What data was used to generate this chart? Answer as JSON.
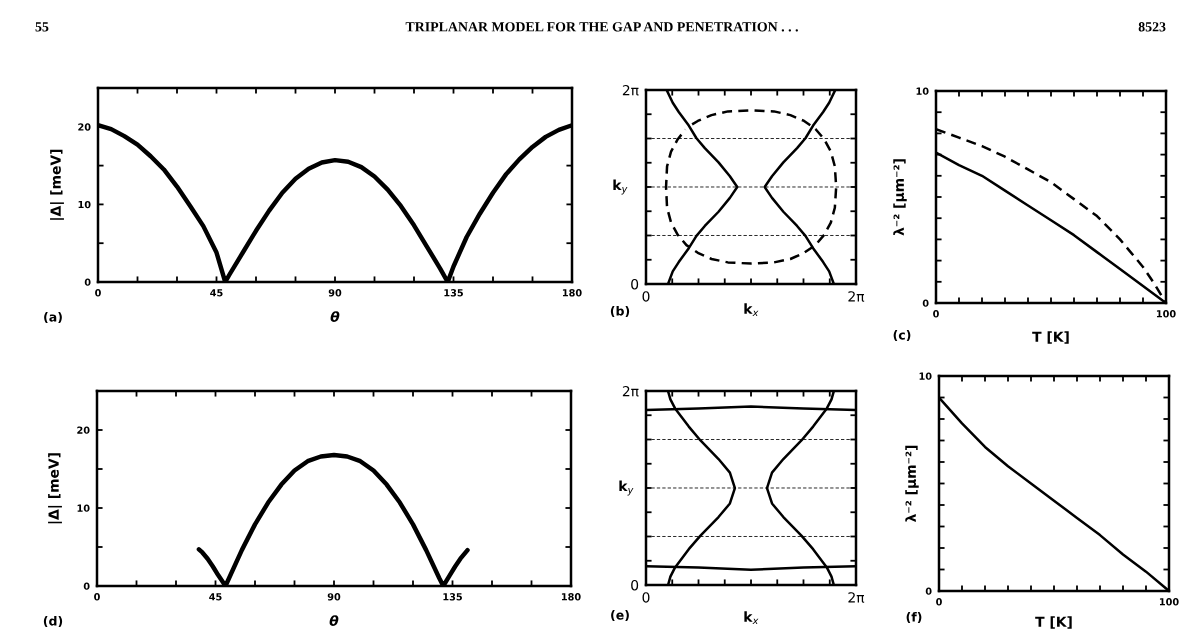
{
  "chart_data": [
    {
      "type": "line",
      "xlabel": "θ",
      "ylabel": "|Δ| [meV]",
      "xlim": [
        0,
        180
      ],
      "ylim": [
        0,
        25
      ],
      "xticks": [
        0,
        {
          "value": 15,
          "label": null
        },
        {
          "value": 30,
          "label": null
        },
        45,
        {
          "value": 60,
          "label": null
        },
        {
          "value": 75,
          "label": null
        },
        90,
        {
          "value": 105,
          "label": null
        },
        {
          "value": 120,
          "label": null
        },
        135,
        {
          "value": 150,
          "label": null
        },
        {
          "value": 165,
          "label": null
        },
        180
      ],
      "yticks": [
        0,
        {
          "value": 5,
          "label": null
        },
        10,
        {
          "value": 15,
          "label": null
        },
        20
      ],
      "series": [
        {
          "color": "#000000",
          "line_style": "solid",
          "x": [
            0,
            5,
            10,
            15,
            20,
            25,
            30,
            35,
            40,
            45,
            48.3,
            50,
            55,
            60,
            65,
            70,
            75,
            80,
            85,
            90,
            95,
            100,
            105,
            110,
            115,
            120,
            125,
            130,
            132.8,
            135,
            140,
            145,
            150,
            155,
            160,
            165,
            170,
            175,
            180
          ],
          "values": [
            20.2,
            19.7,
            18.8,
            17.7,
            16.2,
            14.5,
            12.3,
            9.8,
            7.2,
            3.8,
            0,
            1.0,
            3.8,
            6.6,
            9.2,
            11.5,
            13.3,
            14.6,
            15.4,
            15.7,
            15.5,
            14.8,
            13.6,
            11.9,
            9.8,
            7.3,
            4.5,
            1.7,
            0,
            2.0,
            5.8,
            8.8,
            11.5,
            13.9,
            15.8,
            17.4,
            18.7,
            19.6,
            20.2
          ]
        }
      ],
      "annotations": [
        "55",
        "TRIPLANAR MODEL FOR THE GAP AND PENETRATION . . .",
        "8523",
        "(a)"
      ]
    },
    {
      "type": "line",
      "xlabel": "k$_{x}$",
      "ylabel": "k$_{y}$",
      "xlim": [
        0,
        6.283
      ],
      "ylim": [
        0,
        6.283
      ],
      "xticks": [
        0,
        {
          "value": 0.785,
          "label": null
        },
        {
          "value": 1.571,
          "label": null
        },
        {
          "value": 2.356,
          "label": null
        },
        {
          "value": 3.142,
          "label": null
        },
        {
          "value": 3.927,
          "label": null
        },
        {
          "value": 4.712,
          "label": null
        },
        {
          "value": 5.498,
          "label": null
        },
        {
          "value": 6.283,
          "label": "2π"
        }
      ],
      "yticks": [
        0,
        {
          "value": 0.785,
          "label": null
        },
        {
          "value": 1.571,
          "label": null
        },
        {
          "value": 2.356,
          "label": null
        },
        {
          "value": 3.142,
          "label": null
        },
        {
          "value": 3.927,
          "label": null
        },
        {
          "value": 4.712,
          "label": null
        },
        {
          "value": 5.498,
          "label": null
        },
        {
          "value": 6.283,
          "label": "2π"
        }
      ],
      "series": [
        {
          "color": "#000000",
          "line_style": "solid",
          "x": [
            0.66,
            0.8,
            0.98,
            1.28,
            1.51,
            1.76,
            2.17,
            2.51,
            2.73,
            2.51,
            2.17,
            1.76,
            1.51,
            1.28,
            0.98,
            0.8,
            0.62
          ],
          "values": [
            0,
            0.41,
            0.71,
            1.16,
            1.56,
            1.88,
            2.34,
            2.79,
            3.14,
            3.49,
            3.94,
            4.4,
            4.72,
            5.13,
            5.57,
            5.87,
            6.28
          ]
        },
        {
          "color": "#000000",
          "line_style": "solid",
          "x": [
            5.62,
            5.48,
            5.3,
            5.0,
            4.77,
            4.52,
            4.11,
            3.77,
            3.55,
            3.77,
            4.11,
            4.52,
            4.77,
            5.0,
            5.3,
            5.48,
            5.66
          ],
          "values": [
            0,
            0.41,
            0.71,
            1.16,
            1.56,
            1.88,
            2.34,
            2.79,
            3.14,
            3.49,
            3.94,
            4.4,
            4.72,
            5.13,
            5.57,
            5.87,
            6.28
          ]
        },
        {
          "color": "#000000",
          "line_style": "dashed",
          "x": [
            1.38,
            1.55,
            1.96,
            2.45,
            3.14,
            3.83,
            4.32,
            4.73,
            5.07,
            5.33,
            5.53,
            5.65,
            5.69,
            5.65,
            5.53,
            5.33,
            5.07,
            4.73,
            4.32,
            3.83,
            3.14,
            2.45,
            1.96,
            1.55,
            1.21,
            0.95,
            0.75,
            0.63,
            0.6,
            0.63,
            0.75,
            0.95,
            1.18
          ],
          "values": [
            5.17,
            5.28,
            5.47,
            5.59,
            5.62,
            5.59,
            5.47,
            5.28,
            5.02,
            4.69,
            4.29,
            3.81,
            3.14,
            2.47,
            1.99,
            1.59,
            1.26,
            1.01,
            0.81,
            0.7,
            0.66,
            0.7,
            0.81,
            1.01,
            1.26,
            1.59,
            1.99,
            2.47,
            3.14,
            3.81,
            4.29,
            4.69,
            5.0
          ]
        }
      ],
      "ref_lines": [
        {
          "axis": "y",
          "value": 1.571,
          "color": "#000000",
          "line_style": "dashed"
        },
        {
          "axis": "y",
          "value": 3.142,
          "color": "#000000",
          "line_style": "dashed"
        },
        {
          "axis": "y",
          "value": 4.712,
          "color": "#000000",
          "line_style": "dashed"
        }
      ],
      "annotations": [
        "(b)"
      ]
    },
    {
      "type": "line",
      "xlabel": "T [K]",
      "ylabel": "λ⁻² [μm⁻²]",
      "xlim": [
        0,
        100
      ],
      "ylim": [
        0,
        10
      ],
      "xticks": [
        0,
        {
          "value": 10,
          "label": null
        },
        {
          "value": 20,
          "label": null
        },
        {
          "value": 30,
          "label": null
        },
        {
          "value": 40,
          "label": null
        },
        {
          "value": 50,
          "label": null
        },
        {
          "value": 60,
          "label": null
        },
        {
          "value": 70,
          "label": null
        },
        {
          "value": 80,
          "label": null
        },
        {
          "value": 90,
          "label": null
        },
        100
      ],
      "yticks": [
        0,
        {
          "value": 1,
          "label": null
        },
        {
          "value": 2,
          "label": null
        },
        {
          "value": 3,
          "label": null
        },
        {
          "value": 4,
          "label": null
        },
        {
          "value": 5,
          "label": null
        },
        {
          "value": 6,
          "label": null
        },
        {
          "value": 7,
          "label": null
        },
        {
          "value": 8,
          "label": null
        },
        {
          "value": 9,
          "label": null
        },
        10
      ],
      "series": [
        {
          "color": "#000000",
          "line_style": "solid",
          "x": [
            0,
            10,
            20,
            30,
            40,
            50,
            60,
            70,
            80,
            90,
            100
          ],
          "values": [
            7.1,
            6.5,
            6.0,
            5.3,
            4.6,
            3.9,
            3.2,
            2.4,
            1.6,
            0.8,
            0
          ]
        },
        {
          "color": "#000000",
          "line_style": "dashed",
          "x": [
            0,
            10,
            20,
            30,
            40,
            50,
            60,
            70,
            80,
            90,
            95,
            100
          ],
          "values": [
            8.2,
            7.8,
            7.4,
            6.9,
            6.3,
            5.7,
            4.9,
            4.1,
            3.0,
            1.7,
            0.9,
            0
          ]
        }
      ],
      "annotations": [
        "(c)"
      ]
    },
    {
      "type": "line",
      "xlabel": "θ",
      "ylabel": "|Δ| [meV]",
      "xlim": [
        0,
        180
      ],
      "ylim": [
        0,
        25
      ],
      "xticks": [
        0,
        {
          "value": 15,
          "label": null
        },
        {
          "value": 30,
          "label": null
        },
        45,
        {
          "value": 60,
          "label": null
        },
        {
          "value": 75,
          "label": null
        },
        90,
        {
          "value": 105,
          "label": null
        },
        {
          "value": 120,
          "label": null
        },
        135,
        {
          "value": 150,
          "label": null
        },
        {
          "value": 165,
          "label": null
        },
        180
      ],
      "yticks": [
        0,
        {
          "value": 5,
          "label": null
        },
        10,
        {
          "value": 15,
          "label": null
        },
        20
      ],
      "series": [
        {
          "color": "#000000",
          "line_style": "solid",
          "x": [
            38.7,
            40,
            42,
            44,
            46,
            48.8,
            50,
            55,
            60,
            65,
            70,
            75,
            80,
            85,
            90,
            95,
            100,
            105,
            110,
            115,
            120,
            125,
            130,
            131.5,
            134,
            136,
            138,
            140.7
          ],
          "values": [
            4.7,
            4.3,
            3.5,
            2.5,
            1.4,
            0,
            0.9,
            4.6,
            7.9,
            10.7,
            13.0,
            14.8,
            16.0,
            16.6,
            16.8,
            16.6,
            16.0,
            14.8,
            13.0,
            10.7,
            7.9,
            4.6,
            1.0,
            0,
            1.4,
            2.5,
            3.5,
            4.6
          ]
        }
      ],
      "annotations": [
        "(d)"
      ]
    },
    {
      "type": "line",
      "xlabel": "k$_{x}$",
      "ylabel": "k$_{y}$",
      "xlim": [
        0,
        6.283
      ],
      "ylim": [
        0,
        6.283
      ],
      "xticks": [
        0,
        {
          "value": 0.785,
          "label": null
        },
        {
          "value": 1.571,
          "label": null
        },
        {
          "value": 2.356,
          "label": null
        },
        {
          "value": 3.142,
          "label": null
        },
        {
          "value": 3.927,
          "label": null
        },
        {
          "value": 4.712,
          "label": null
        },
        {
          "value": 5.498,
          "label": null
        },
        {
          "value": 6.283,
          "label": "2π"
        }
      ],
      "yticks": [
        0,
        {
          "value": 0.785,
          "label": null
        },
        {
          "value": 1.571,
          "label": null
        },
        {
          "value": 2.356,
          "label": null
        },
        {
          "value": 3.142,
          "label": null
        },
        {
          "value": 3.927,
          "label": null
        },
        {
          "value": 4.712,
          "label": null
        },
        {
          "value": 5.498,
          "label": null
        },
        {
          "value": 6.283,
          "label": "2π"
        }
      ],
      "series": [
        {
          "color": "#000000",
          "line_style": "solid",
          "x": [
            0.66,
            0.73,
            0.87,
            1.28,
            1.63,
            2.17,
            2.51,
            2.66,
            2.51,
            2.17,
            1.63,
            1.28,
            0.87,
            0.73,
            0.66
          ],
          "values": [
            0,
            0.27,
            0.57,
            1.16,
            1.6,
            2.2,
            2.64,
            3.14,
            3.64,
            4.08,
            4.68,
            5.13,
            5.72,
            6.01,
            6.28
          ]
        },
        {
          "color": "#000000",
          "line_style": "solid",
          "x": [
            5.62,
            5.55,
            5.41,
            5.0,
            4.65,
            4.11,
            3.77,
            3.62,
            3.77,
            4.11,
            4.65,
            5.0,
            5.41,
            5.55,
            5.62
          ],
          "values": [
            0,
            0.27,
            0.57,
            1.16,
            1.6,
            2.2,
            2.64,
            3.14,
            3.64,
            4.08,
            4.68,
            5.13,
            5.72,
            6.01,
            6.28
          ]
        },
        {
          "color": "#000000",
          "line_style": "solid",
          "x": [
            0,
            1.57,
            3.14,
            4.71,
            6.28
          ],
          "values": [
            0.61,
            0.57,
            0.49,
            0.57,
            0.61
          ]
        },
        {
          "color": "#000000",
          "line_style": "solid",
          "x": [
            0,
            1.57,
            3.14,
            4.71,
            6.28
          ],
          "values": [
            5.67,
            5.72,
            5.78,
            5.72,
            5.67
          ]
        }
      ],
      "ref_lines": [
        {
          "axis": "y",
          "value": 1.571,
          "color": "#000000",
          "line_style": "dashed"
        },
        {
          "axis": "y",
          "value": 3.142,
          "color": "#000000",
          "line_style": "dashed"
        },
        {
          "axis": "y",
          "value": 4.712,
          "color": "#000000",
          "line_style": "dashed"
        }
      ],
      "annotations": [
        "(e)"
      ]
    },
    {
      "type": "line",
      "xlabel": "T [K]",
      "ylabel": "λ⁻² [μm⁻²]",
      "xlim": [
        0,
        100
      ],
      "ylim": [
        0,
        10
      ],
      "xticks": [
        0,
        {
          "value": 10,
          "label": null
        },
        {
          "value": 20,
          "label": null
        },
        {
          "value": 30,
          "label": null
        },
        {
          "value": 40,
          "label": null
        },
        {
          "value": 50,
          "label": null
        },
        {
          "value": 60,
          "label": null
        },
        {
          "value": 70,
          "label": null
        },
        {
          "value": 80,
          "label": null
        },
        {
          "value": 90,
          "label": null
        },
        100
      ],
      "yticks": [
        0,
        {
          "value": 1,
          "label": null
        },
        {
          "value": 2,
          "label": null
        },
        {
          "value": 3,
          "label": null
        },
        {
          "value": 4,
          "label": null
        },
        {
          "value": 5,
          "label": null
        },
        {
          "value": 6,
          "label": null
        },
        {
          "value": 7,
          "label": null
        },
        {
          "value": 8,
          "label": null
        },
        {
          "value": 9,
          "label": null
        },
        10
      ],
      "series": [
        {
          "color": "#000000",
          "line_style": "solid",
          "x": [
            0,
            10,
            20,
            30,
            40,
            50,
            60,
            70,
            80,
            90,
            100
          ],
          "values": [
            9.0,
            7.8,
            6.7,
            5.8,
            5.0,
            4.2,
            3.4,
            2.6,
            1.7,
            0.9,
            0
          ]
        }
      ],
      "annotations": [
        "(f)"
      ]
    }
  ]
}
